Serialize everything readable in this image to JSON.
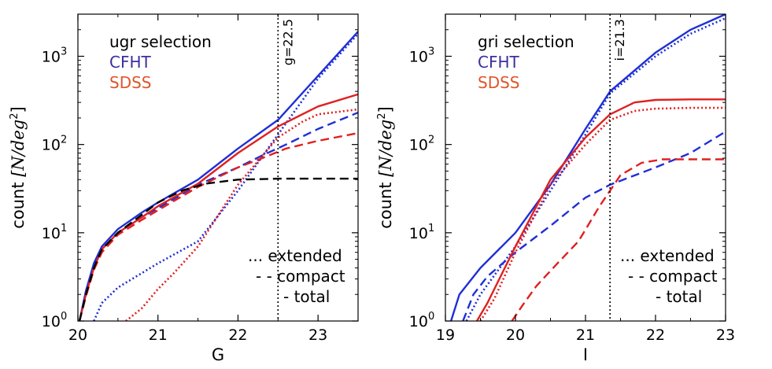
{
  "colors": {
    "cfht": "#1f2fd6",
    "sdss": "#e02020",
    "black": "#000000"
  },
  "chart_data": [
    {
      "type": "line",
      "xlabel": "G",
      "ylabel_prefix": "count ",
      "ylabel_units": "[N/deg",
      "ylabel_power": "2",
      "ylabel_close": "]",
      "xlim": [
        20.0,
        23.5
      ],
      "ylim": [
        1,
        3000
      ],
      "yscale": "log",
      "xticks": [
        {
          "v": 20,
          "label": "20"
        },
        {
          "v": 21,
          "label": "21"
        },
        {
          "v": 22,
          "label": "22"
        },
        {
          "v": 23,
          "label": "23"
        }
      ],
      "yticks": [
        {
          "v": 1,
          "base": "10",
          "exp": "0"
        },
        {
          "v": 10,
          "base": "10",
          "exp": "1"
        },
        {
          "v": 100,
          "base": "10",
          "exp": "2"
        },
        {
          "v": 1000,
          "base": "10",
          "exp": "3"
        }
      ],
      "vline": {
        "x": 22.5,
        "label": "g=22.5"
      },
      "legend": {
        "title": "ugr selection",
        "entries": [
          {
            "label": "CFHT",
            "color": "#3c2ea0"
          },
          {
            "label": "SDSS",
            "color": "#e0552a"
          }
        ]
      },
      "style_notes": [
        "... extended",
        "- - compact",
        "- total"
      ],
      "series": [
        {
          "name": "CFHT total",
          "color": "#1f2fd6",
          "style": "solid",
          "x": [
            20.02,
            20.1,
            20.2,
            20.3,
            20.5,
            20.8,
            21.0,
            21.5,
            22.0,
            22.5,
            23.0,
            23.5
          ],
          "y": [
            1,
            2.2,
            4.5,
            7,
            11,
            17,
            22,
            40,
            90,
            190,
            600,
            1900
          ]
        },
        {
          "name": "CFHT compact",
          "color": "#1f2fd6",
          "style": "dashed",
          "x": [
            20.02,
            20.1,
            20.2,
            20.3,
            20.5,
            20.8,
            21.0,
            21.5,
            22.0,
            22.3,
            22.6,
            23.0,
            23.5
          ],
          "y": [
            1,
            2.0,
            4.0,
            6.5,
            10,
            15,
            19,
            35,
            55,
            75,
            100,
            150,
            230
          ]
        },
        {
          "name": "CFHT extended",
          "color": "#1f2fd6",
          "style": "dotted",
          "x": [
            20.2,
            20.3,
            20.5,
            20.8,
            21.0,
            21.5,
            22.0,
            22.5,
            23.0,
            23.5
          ],
          "y": [
            1,
            1.6,
            2.4,
            3.5,
            4.5,
            8,
            30,
            130,
            560,
            1800
          ]
        },
        {
          "name": "SDSS total",
          "color": "#e02020",
          "style": "solid",
          "x": [
            20.02,
            20.1,
            20.2,
            20.3,
            20.5,
            20.8,
            21.0,
            21.5,
            22.0,
            22.5,
            23.0,
            23.5
          ],
          "y": [
            1,
            2.0,
            4.0,
            6.5,
            10,
            15,
            20,
            36,
            80,
            160,
            270,
            370
          ]
        },
        {
          "name": "SDSS compact",
          "color": "#e02020",
          "style": "dashed",
          "x": [
            20.02,
            20.1,
            20.2,
            20.3,
            20.5,
            20.8,
            21.0,
            21.5,
            22.0,
            22.3,
            22.6,
            23.0,
            23.5
          ],
          "y": [
            1,
            1.9,
            3.8,
            6,
            9.5,
            14,
            18,
            33,
            55,
            70,
            90,
            110,
            135
          ]
        },
        {
          "name": "SDSS extended",
          "color": "#e02020",
          "style": "dotted",
          "x": [
            20.6,
            20.8,
            21.0,
            21.2,
            21.5,
            22.0,
            22.5,
            22.8,
            23.0,
            23.5
          ],
          "y": [
            1,
            1.4,
            2.3,
            3.5,
            7,
            35,
            120,
            180,
            220,
            250
          ]
        },
        {
          "name": "Total compact (black)",
          "color": "#000000",
          "style": "dashed",
          "x": [
            20.02,
            20.1,
            20.2,
            20.3,
            20.5,
            20.8,
            21.0,
            21.3,
            21.6,
            22.0,
            22.5,
            23.0,
            23.5
          ],
          "y": [
            1,
            2.0,
            4.0,
            6.5,
            10,
            16,
            22,
            30,
            36,
            40,
            41,
            41,
            41
          ]
        }
      ]
    },
    {
      "type": "line",
      "xlabel": "I",
      "ylabel_prefix": "count ",
      "ylabel_units": "[N/deg",
      "ylabel_power": "2",
      "ylabel_close": "]",
      "xlim": [
        19.0,
        23.0
      ],
      "ylim": [
        1,
        3000
      ],
      "yscale": "log",
      "xticks": [
        {
          "v": 19,
          "label": "19"
        },
        {
          "v": 20,
          "label": "20"
        },
        {
          "v": 21,
          "label": "21"
        },
        {
          "v": 22,
          "label": "22"
        },
        {
          "v": 23,
          "label": "23"
        }
      ],
      "yticks": [
        {
          "v": 1,
          "base": "10",
          "exp": "0"
        },
        {
          "v": 10,
          "base": "10",
          "exp": "1"
        },
        {
          "v": 100,
          "base": "10",
          "exp": "2"
        },
        {
          "v": 1000,
          "base": "10",
          "exp": "3"
        }
      ],
      "vline": {
        "x": 21.35,
        "label": "i=21.3"
      },
      "legend": {
        "title": "gri selection",
        "entries": [
          {
            "label": "CFHT",
            "color": "#3c2ea0"
          },
          {
            "label": "SDSS",
            "color": "#e0552a"
          }
        ]
      },
      "style_notes": [
        "... extended",
        "- - compact",
        "- total"
      ],
      "series": [
        {
          "name": "CFHT total",
          "color": "#1f2fd6",
          "style": "solid",
          "x": [
            19.08,
            19.2,
            19.5,
            20.0,
            20.5,
            21.0,
            21.35,
            22.0,
            22.5,
            23.0
          ],
          "y": [
            1,
            2.0,
            4.0,
            10,
            35,
            150,
            400,
            1100,
            2000,
            3000
          ]
        },
        {
          "name": "CFHT extended",
          "color": "#1f2fd6",
          "style": "dotted",
          "x": [
            19.3,
            19.5,
            20.0,
            20.5,
            21.0,
            21.35,
            22.0,
            22.5,
            23.0
          ],
          "y": [
            1,
            2.0,
            7,
            30,
            130,
            380,
            1000,
            1800,
            2700
          ]
        },
        {
          "name": "CFHT compact",
          "color": "#1f2fd6",
          "style": "dashed",
          "x": [
            19.25,
            19.4,
            19.6,
            20.0,
            20.5,
            21.0,
            21.35,
            22.0,
            22.5,
            23.0
          ],
          "y": [
            1,
            2.0,
            3.2,
            6,
            12,
            25,
            35,
            55,
            80,
            140
          ]
        },
        {
          "name": "SDSS total",
          "color": "#e02020",
          "style": "solid",
          "x": [
            19.45,
            19.6,
            20.0,
            20.5,
            21.0,
            21.35,
            21.7,
            22.0,
            22.5,
            23.0
          ],
          "y": [
            1,
            1.6,
            7,
            40,
            120,
            220,
            300,
            320,
            325,
            325
          ]
        },
        {
          "name": "SDSS extended",
          "color": "#e02020",
          "style": "dotted",
          "x": [
            19.5,
            19.7,
            20.0,
            20.5,
            21.0,
            21.35,
            21.7,
            22.0,
            22.5,
            23.0
          ],
          "y": [
            1,
            1.8,
            6,
            35,
            100,
            190,
            240,
            255,
            260,
            260
          ]
        },
        {
          "name": "SDSS compact",
          "color": "#e02020",
          "style": "dashed",
          "x": [
            19.95,
            20.1,
            20.3,
            20.6,
            20.9,
            21.2,
            21.5,
            21.8,
            22.1,
            22.5,
            23.0
          ],
          "y": [
            1,
            1.5,
            2.5,
            4.5,
            8,
            20,
            45,
            62,
            68,
            68,
            68
          ]
        }
      ]
    }
  ]
}
